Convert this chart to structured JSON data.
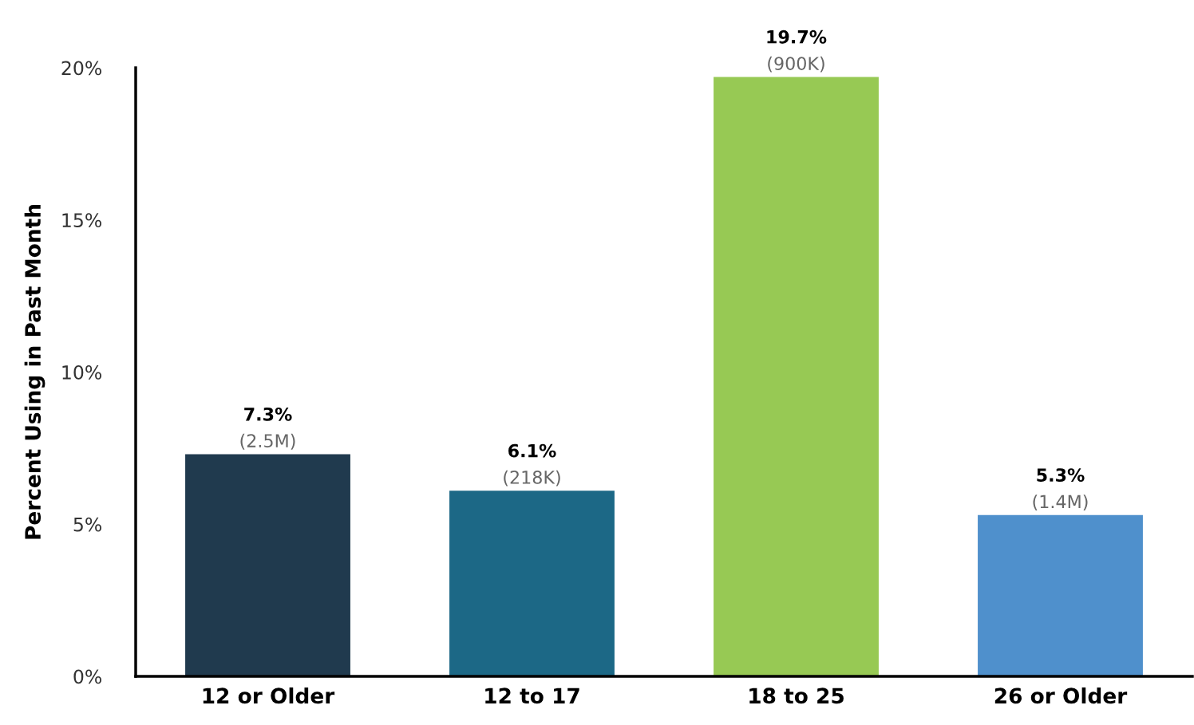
{
  "chart_data": {
    "type": "bar",
    "ylabel": "Percent Using in Past Month",
    "categories": [
      "12 or Older",
      "12 to 17",
      "18 to 25",
      "26 or Older"
    ],
    "values": [
      7.3,
      6.1,
      19.7,
      5.3
    ],
    "colors": [
      "#203a4e",
      "#1c6886",
      "#97c954",
      "#4f90cc"
    ],
    "value_labels": [
      "7.3%",
      "6.1%",
      "19.7%",
      "5.3%"
    ],
    "annotations": [
      {
        "text": "(2.5M)",
        "x": "12 or Older",
        "y": 7.3
      },
      {
        "text": "(218K)",
        "x": "12 to 17",
        "y": 6.1
      },
      {
        "text": "(900K)",
        "x": "18 to 25",
        "y": 19.7
      },
      {
        "text": "(1.4M)",
        "x": "26 or Older",
        "y": 5.3
      }
    ],
    "ylim": [
      0,
      20
    ],
    "yticks": [
      {
        "value": 0,
        "label": "0%"
      },
      {
        "value": 5,
        "label": "5%"
      },
      {
        "value": 10,
        "label": "10%"
      },
      {
        "value": 15,
        "label": "15%"
      },
      {
        "value": 20,
        "label": "20%"
      }
    ],
    "grid": false,
    "legend": false
  }
}
